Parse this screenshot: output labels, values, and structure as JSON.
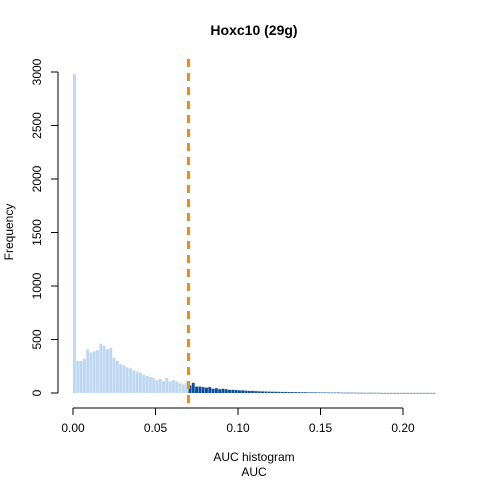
{
  "chart_data": {
    "type": "bar",
    "title": "Hoxc10 (29g)",
    "xlabel": "AUC histogram",
    "xlabel2": "AUC",
    "ylabel": "Frequency",
    "xlim": [
      0.0,
      0.22
    ],
    "ylim": [
      0,
      3000
    ],
    "xticks": [
      "0.00",
      "0.05",
      "0.10",
      "0.15",
      "0.20"
    ],
    "xtick_values": [
      0.0,
      0.05,
      0.1,
      0.15,
      0.2
    ],
    "yticks": [
      "0",
      "500",
      "1000",
      "1500",
      "2000",
      "2500",
      "3000"
    ],
    "ytick_values": [
      0,
      500,
      1000,
      1500,
      2000,
      2500,
      3000
    ],
    "bin_width": 0.002,
    "bin_start": 0.0,
    "threshold": 0.07,
    "grid": false,
    "colors": {
      "below_threshold": "#bed7f2",
      "above_threshold": "#0c4c98",
      "threshold_line": "#f28c0f"
    },
    "values": [
      2980,
      300,
      300,
      320,
      410,
      380,
      390,
      400,
      460,
      440,
      410,
      420,
      330,
      300,
      270,
      260,
      240,
      230,
      210,
      200,
      190,
      170,
      160,
      150,
      140,
      120,
      130,
      110,
      140,
      110,
      120,
      110,
      90,
      80,
      100,
      70,
      95,
      60,
      60,
      55,
      50,
      55,
      40,
      45,
      35,
      40,
      35,
      30,
      30,
      28,
      25,
      25,
      22,
      20,
      20,
      18,
      16,
      15,
      14,
      13,
      12,
      12,
      11,
      10,
      10,
      9,
      9,
      8,
      8,
      7,
      7,
      6,
      6,
      6,
      5,
      5,
      5,
      4,
      4,
      4,
      4,
      3,
      3,
      3,
      3,
      3,
      2,
      2,
      2,
      2,
      2,
      2,
      2,
      1,
      1,
      1,
      1,
      1,
      1,
      1,
      1,
      1,
      1,
      1,
      1,
      1,
      1,
      1,
      1,
      1
    ]
  }
}
